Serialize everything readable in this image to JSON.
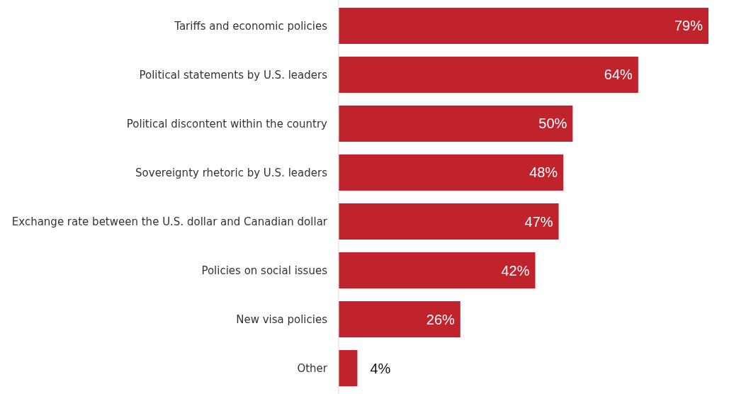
{
  "chart_data": {
    "type": "bar",
    "orientation": "horizontal",
    "categories": [
      "Tariffs and economic policies",
      "Political statements by U.S. leaders",
      "Political discontent within the country",
      "Sovereignty rhetoric by U.S. leaders",
      "Exchange rate between the U.S. dollar and Canadian dollar",
      "Policies on social issues",
      "New visa policies",
      "Other"
    ],
    "values": [
      79,
      64,
      50,
      48,
      47,
      42,
      26,
      4
    ],
    "value_labels": [
      "79%",
      "64%",
      "50%",
      "48%",
      "47%",
      "42%",
      "26%",
      "4%"
    ],
    "color": "#c1232d"
  }
}
